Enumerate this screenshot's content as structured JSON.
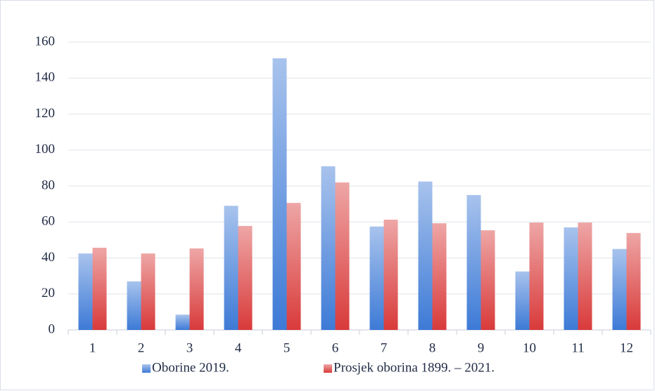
{
  "chart_data": {
    "type": "bar",
    "categories": [
      "1",
      "2",
      "3",
      "4",
      "5",
      "6",
      "7",
      "8",
      "9",
      "10",
      "11",
      "12"
    ],
    "series": [
      {
        "name": "Oborine 2019.",
        "color": "#3d7ad6",
        "values": [
          42.5,
          27,
          8.5,
          69,
          151,
          91,
          57.5,
          82.5,
          75,
          32.5,
          57,
          45
        ]
      },
      {
        "name": "Prosjek oborina 1899. – 2021.",
        "color": "#d93a3a",
        "values": [
          45.7,
          42.5,
          45.3,
          57.8,
          70.6,
          82,
          61.3,
          59.3,
          55.4,
          59.7,
          59.7,
          53.9
        ]
      }
    ],
    "ylim": [
      0,
      160
    ],
    "yticks": [
      0,
      20,
      40,
      60,
      80,
      100,
      120,
      140,
      160
    ],
    "grid": true,
    "legend": "bottom"
  }
}
